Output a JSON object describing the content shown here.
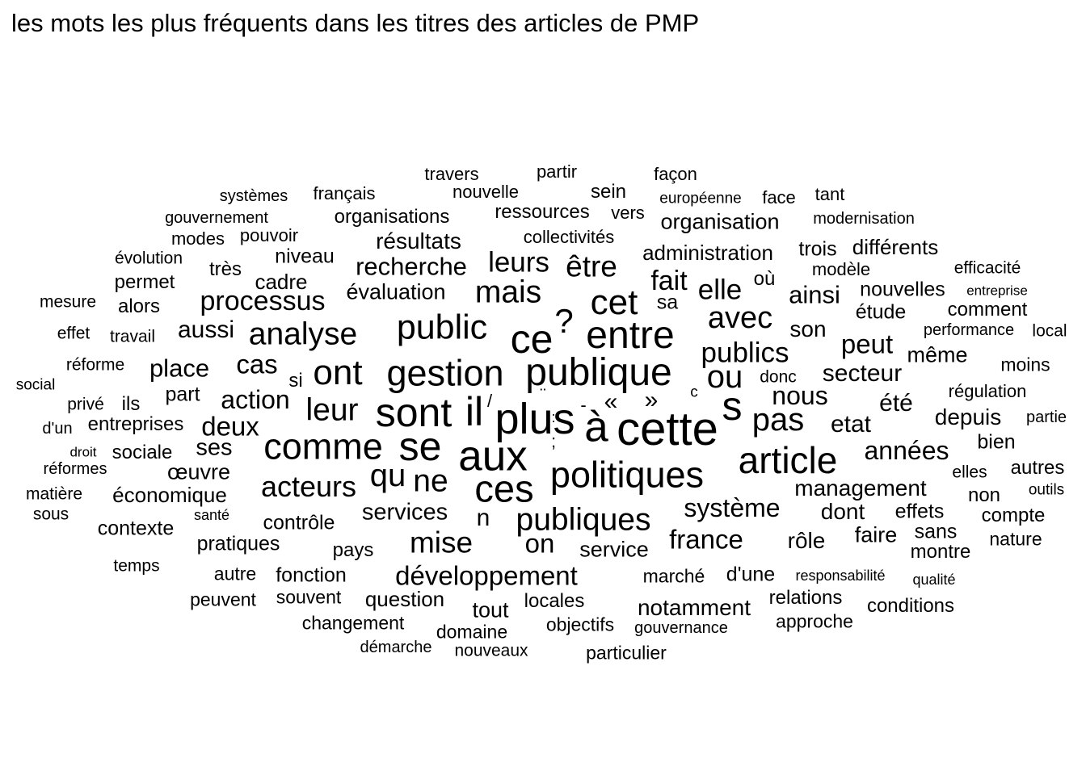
{
  "title": "les mots les plus fréquents dans les titres des articles de PMP",
  "chart_data": {
    "type": "wordcloud",
    "title": "les mots les plus fréquents dans les titres des articles de PMP",
    "words": [
      {
        "text": "cette",
        "weight": 58
      },
      {
        "text": "plus",
        "weight": 54
      },
      {
        "text": "à",
        "weight": 53
      },
      {
        "text": "aux",
        "weight": 53
      },
      {
        "text": "ce",
        "weight": 50
      },
      {
        "text": "sont",
        "weight": 50
      },
      {
        "text": "se",
        "weight": 50
      },
      {
        "text": "il",
        "weight": 50
      },
      {
        "text": "s",
        "weight": 50
      },
      {
        "text": "entre",
        "weight": 48
      },
      {
        "text": "publique",
        "weight": 48
      },
      {
        "text": "ces",
        "weight": 47
      },
      {
        "text": "article",
        "weight": 46
      },
      {
        "text": "comme",
        "weight": 45
      },
      {
        "text": "gestion",
        "weight": 45
      },
      {
        "text": "politiques",
        "weight": 45
      },
      {
        "text": "ont",
        "weight": 44
      },
      {
        "text": "cet",
        "weight": 44
      },
      {
        "text": "public",
        "weight": 43
      },
      {
        "text": "?",
        "weight": 42
      },
      {
        "text": "qu",
        "weight": 40
      },
      {
        "text": "ou",
        "weight": 40
      },
      {
        "text": "pas",
        "weight": 40
      },
      {
        "text": "leur",
        "weight": 39
      },
      {
        "text": "analyse",
        "weight": 39
      },
      {
        "text": "ne",
        "weight": 39
      },
      {
        "text": "mais",
        "weight": 39
      },
      {
        "text": "publiques",
        "weight": 39
      },
      {
        "text": "avec",
        "weight": 38
      },
      {
        "text": "mise",
        "weight": 37
      },
      {
        "text": "être",
        "weight": 37
      },
      {
        "text": "acteurs",
        "weight": 36
      },
      {
        "text": "leurs",
        "weight": 35
      },
      {
        "text": "elle",
        "weight": 35
      },
      {
        "text": "publics",
        "weight": 35
      },
      {
        "text": "fait",
        "weight": 34
      },
      {
        "text": "processus",
        "weight": 34
      },
      {
        "text": "cas",
        "weight": 33
      },
      {
        "text": "deux",
        "weight": 33
      },
      {
        "text": "peut",
        "weight": 33
      },
      {
        "text": "on",
        "weight": 33
      },
      {
        "text": "france",
        "weight": 33
      },
      {
        "text": "développement",
        "weight": 33
      },
      {
        "text": "système",
        "weight": 32
      },
      {
        "text": "action",
        "weight": 32
      },
      {
        "text": "nous",
        "weight": 32
      },
      {
        "text": "années",
        "weight": 32
      },
      {
        "text": "recherche",
        "weight": 31
      },
      {
        "text": "place",
        "weight": 31
      },
      {
        "text": "ainsi",
        "weight": 31
      },
      {
        "text": "aussi",
        "weight": 30
      },
      {
        "text": "secteur",
        "weight": 30
      },
      {
        "text": "été",
        "weight": 30
      },
      {
        "text": "etat",
        "weight": 30
      },
      {
        "text": "n",
        "weight": 30
      },
      {
        "text": "«",
        "weight": 30
      },
      {
        "text": "»",
        "weight": 30
      },
      {
        "text": "services",
        "weight": 29
      },
      {
        "text": "ses",
        "weight": 29
      },
      {
        "text": "résultats",
        "weight": 28
      },
      {
        "text": "son",
        "weight": 28
      },
      {
        "text": "management",
        "weight": 28
      },
      {
        "text": "depuis",
        "weight": 28
      },
      {
        "text": "rôle",
        "weight": 28
      },
      {
        "text": "dont",
        "weight": 28
      },
      {
        "text": "notamment",
        "weight": 28
      },
      {
        "text": "évaluation",
        "weight": 27
      },
      {
        "text": "organisation",
        "weight": 27
      },
      {
        "text": "même",
        "weight": 27
      },
      {
        "text": "faire",
        "weight": 27
      },
      {
        "text": "service",
        "weight": 27
      },
      {
        "text": "œuvre",
        "weight": 27
      },
      {
        "text": "tout",
        "weight": 27
      },
      {
        "text": "question",
        "weight": 26
      },
      {
        "text": "économique",
        "weight": 26
      },
      {
        "text": "cadre",
        "weight": 26
      },
      {
        "text": "administration",
        "weight": 26
      },
      {
        "text": "différents",
        "weight": 26
      },
      {
        "text": "nouvelles",
        "weight": 25
      },
      {
        "text": "étude",
        "weight": 25
      },
      {
        "text": "part",
        "weight": 25
      },
      {
        "text": "pratiques",
        "weight": 25
      },
      {
        "text": "contrôle",
        "weight": 25
      },
      {
        "text": "niveau",
        "weight": 25
      },
      {
        "text": "sa",
        "weight": 25
      },
      {
        "text": "fonction",
        "weight": 25
      },
      {
        "text": "trois",
        "weight": 25
      },
      {
        "text": "d'une",
        "weight": 25
      },
      {
        "text": "effets",
        "weight": 25
      },
      {
        "text": "bien",
        "weight": 25
      },
      {
        "text": "sans",
        "weight": 25
      },
      {
        "text": "contexte",
        "weight": 25
      },
      {
        "text": "autres",
        "weight": 24
      },
      {
        "text": "entreprises",
        "weight": 24
      },
      {
        "text": "sociale",
        "weight": 24
      },
      {
        "text": "ils",
        "weight": 24
      },
      {
        "text": "si",
        "weight": 24
      },
      {
        "text": "sein",
        "weight": 24
      },
      {
        "text": "où",
        "weight": 24
      },
      {
        "text": "non",
        "weight": 24
      },
      {
        "text": "montre",
        "weight": 24
      },
      {
        "text": "comment",
        "weight": 24
      },
      {
        "text": "ressources",
        "weight": 24
      },
      {
        "text": "organisations",
        "weight": 24
      },
      {
        "text": "pays",
        "weight": 24
      },
      {
        "text": "locales",
        "weight": 24
      },
      {
        "text": "relations",
        "weight": 24
      },
      {
        "text": "conditions",
        "weight": 24
      },
      {
        "text": "compte",
        "weight": 24
      },
      {
        "text": "très",
        "weight": 24
      },
      {
        "text": "permet",
        "weight": 24
      },
      {
        "text": "alors",
        "weight": 24
      },
      {
        "text": "nature",
        "weight": 23
      },
      {
        "text": "objectifs",
        "weight": 23
      },
      {
        "text": "domaine",
        "weight": 23
      },
      {
        "text": "particulier",
        "weight": 23
      },
      {
        "text": "autre",
        "weight": 23
      },
      {
        "text": "souvent",
        "weight": 23
      },
      {
        "text": "peuvent",
        "weight": 23
      },
      {
        "text": "changement",
        "weight": 23
      },
      {
        "text": "approche",
        "weight": 23
      },
      {
        "text": "marché",
        "weight": 23
      },
      {
        "text": "moins",
        "weight": 23
      },
      {
        "text": "régulation",
        "weight": 22
      },
      {
        "text": "français",
        "weight": 22
      },
      {
        "text": "nouvelle",
        "weight": 22
      },
      {
        "text": "travers",
        "weight": 22
      },
      {
        "text": "partir",
        "weight": 22
      },
      {
        "text": "façon",
        "weight": 22
      },
      {
        "text": "face",
        "weight": 22
      },
      {
        "text": "tant",
        "weight": 22
      },
      {
        "text": "vers",
        "weight": 22
      },
      {
        "text": "collectivités",
        "weight": 22
      },
      {
        "text": "pouvoir",
        "weight": 22
      },
      {
        "text": "modes",
        "weight": 22
      },
      {
        "text": "modèle",
        "weight": 22
      },
      {
        "text": "efficacité",
        "weight": 21
      },
      {
        "text": "évolution",
        "weight": 21
      },
      {
        "text": "travail",
        "weight": 21
      },
      {
        "text": "effet",
        "weight": 21
      },
      {
        "text": "mesure",
        "weight": 21
      },
      {
        "text": "donc",
        "weight": 21
      },
      {
        "text": "elles",
        "weight": 21
      },
      {
        "text": "temps",
        "weight": 21
      },
      {
        "text": "nouveaux",
        "weight": 21
      },
      {
        "text": "réforme",
        "weight": 21
      },
      {
        "text": "privé",
        "weight": 21
      },
      {
        "text": "local",
        "weight": 21
      },
      {
        "text": "matière",
        "weight": 21
      },
      {
        "text": "sous",
        "weight": 21
      },
      {
        "text": "partie",
        "weight": 20
      },
      {
        "text": "performance",
        "weight": 20
      },
      {
        "text": "gouvernement",
        "weight": 20
      },
      {
        "text": "systèmes",
        "weight": 20
      },
      {
        "text": "modernisation",
        "weight": 20
      },
      {
        "text": "d'un",
        "weight": 20
      },
      {
        "text": "réformes",
        "weight": 20
      },
      {
        "text": "démarche",
        "weight": 20
      },
      {
        "text": "gouvernance",
        "weight": 20
      },
      {
        "text": "européenne",
        "weight": 19
      },
      {
        "text": "outils",
        "weight": 19
      },
      {
        "text": "c",
        "weight": 19
      },
      {
        "text": "social",
        "weight": 19
      },
      {
        "text": "qualité",
        "weight": 18
      },
      {
        "text": "santé",
        "weight": 18
      },
      {
        "text": "responsabilité",
        "weight": 18
      },
      {
        "text": "entreprise",
        "weight": 17
      },
      {
        "text": "droit",
        "weight": 17
      },
      {
        "text": "/",
        "weight": 22
      },
      {
        "text": "¨",
        "weight": 22
      },
      {
        "text": "-",
        "weight": 22
      },
      {
        "text": ";",
        "weight": 22
      },
      {
        "text": ":",
        "weight": 18
      }
    ]
  }
}
